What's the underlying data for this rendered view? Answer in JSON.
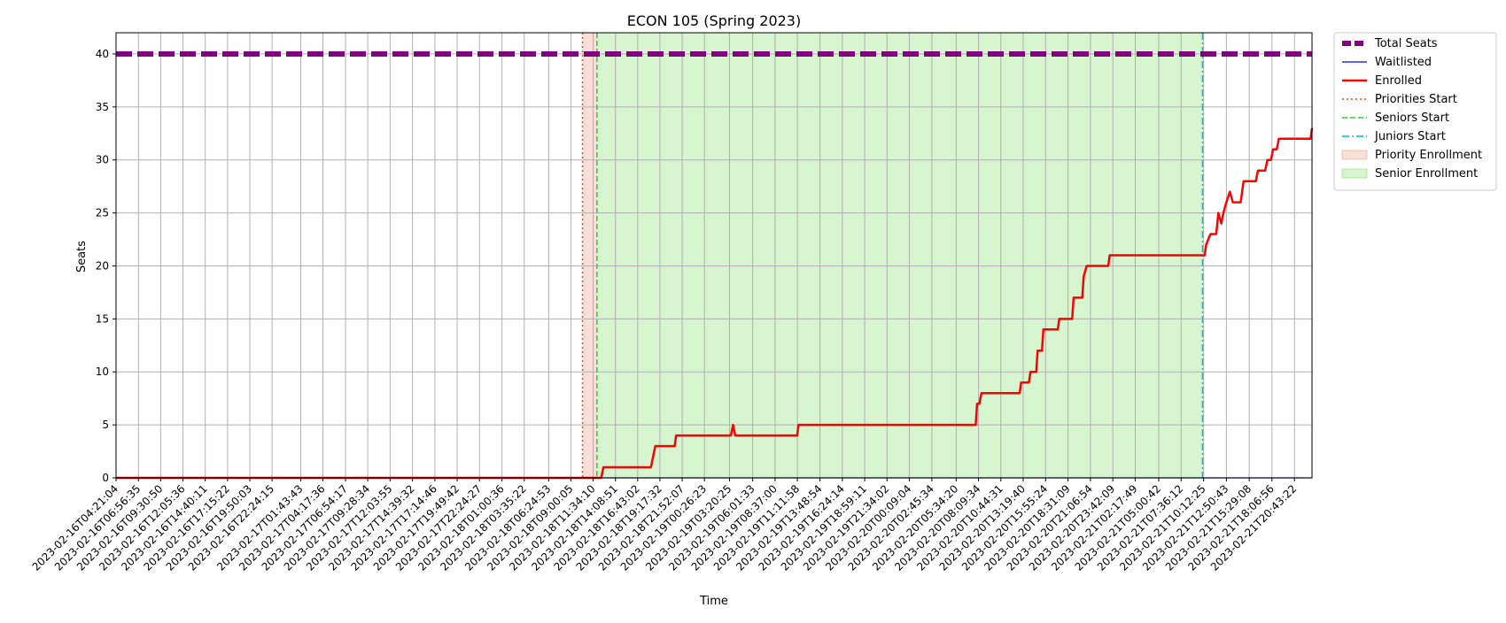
{
  "chart_data": {
    "type": "line",
    "title": "ECON 105 (Spring 2023)",
    "xlabel": "Time",
    "ylabel": "Seats",
    "ylim": [
      0,
      42
    ],
    "yticks": [
      0,
      5,
      10,
      15,
      20,
      25,
      30,
      35,
      40
    ],
    "xlim": [
      "2023-02-16T04:21:04",
      "2023-02-21T22:45:00"
    ],
    "grid": true,
    "legend_position": "outside-right-top",
    "xticks": [
      "2023-02-16T04:21:04",
      "2023-02-16T06:56:35",
      "2023-02-16T09:30:50",
      "2023-02-16T12:05:36",
      "2023-02-16T14:40:11",
      "2023-02-16T17:15:22",
      "2023-02-16T19:50:03",
      "2023-02-16T22:24:15",
      "2023-02-17T01:43:43",
      "2023-02-17T04:17:36",
      "2023-02-17T06:54:17",
      "2023-02-17T09:28:34",
      "2023-02-17T12:03:55",
      "2023-02-17T14:39:32",
      "2023-02-17T17:14:46",
      "2023-02-17T19:49:42",
      "2023-02-17T22:24:27",
      "2023-02-18T01:00:36",
      "2023-02-18T03:35:22",
      "2023-02-18T06:24:53",
      "2023-02-18T09:00:05",
      "2023-02-18T11:34:10",
      "2023-02-18T14:08:51",
      "2023-02-18T16:43:02",
      "2023-02-18T19:17:32",
      "2023-02-18T21:52:07",
      "2023-02-19T00:26:23",
      "2023-02-19T03:20:25",
      "2023-02-19T06:01:33",
      "2023-02-19T08:37:00",
      "2023-02-19T11:11:58",
      "2023-02-19T13:48:54",
      "2023-02-19T16:24:14",
      "2023-02-19T18:59:11",
      "2023-02-19T21:34:02",
      "2023-02-20T00:09:04",
      "2023-02-20T02:45:34",
      "2023-02-20T05:34:20",
      "2023-02-20T08:09:34",
      "2023-02-20T10:44:31",
      "2023-02-20T13:19:40",
      "2023-02-20T15:55:24",
      "2023-02-20T18:31:09",
      "2023-02-20T21:06:54",
      "2023-02-20T23:42:09",
      "2023-02-21T02:17:49",
      "2023-02-21T05:00:42",
      "2023-02-21T07:36:12",
      "2023-02-21T10:12:25",
      "2023-02-21T12:50:43",
      "2023-02-21T15:29:08",
      "2023-02-21T18:06:56",
      "2023-02-21T20:43:22"
    ],
    "series": [
      {
        "name": "Total Seats",
        "color": "#800080",
        "style": "dashed-thick",
        "points": [
          [
            "2023-02-16T04:21:04",
            40
          ],
          [
            "2023-02-21T22:45:00",
            40
          ]
        ]
      },
      {
        "name": "Waitlisted",
        "color": "#0000ff",
        "style": "solid-thin",
        "points": [
          [
            "2023-02-16T04:21:04",
            0
          ],
          [
            "2023-02-21T22:45:00",
            0
          ]
        ]
      },
      {
        "name": "Enrolled",
        "color": "#ff0000",
        "style": "solid",
        "points": [
          [
            "2023-02-16T04:21:04",
            0
          ],
          [
            "2023-02-18T12:30:00",
            0
          ],
          [
            "2023-02-18T12:45:00",
            1
          ],
          [
            "2023-02-18T18:15:00",
            1
          ],
          [
            "2023-02-18T18:30:00",
            2
          ],
          [
            "2023-02-18T18:45:00",
            3
          ],
          [
            "2023-02-18T21:00:00",
            3
          ],
          [
            "2023-02-18T21:10:00",
            4
          ],
          [
            "2023-02-19T03:30:00",
            4
          ],
          [
            "2023-02-19T03:45:00",
            5
          ],
          [
            "2023-02-19T04:00:00",
            4
          ],
          [
            "2023-02-19T11:10:00",
            4
          ],
          [
            "2023-02-19T11:20:00",
            5
          ],
          [
            "2023-02-20T07:50:00",
            5
          ],
          [
            "2023-02-20T08:00:00",
            7
          ],
          [
            "2023-02-20T08:15:00",
            7
          ],
          [
            "2023-02-20T08:30:00",
            8
          ],
          [
            "2023-02-20T12:55:00",
            8
          ],
          [
            "2023-02-20T13:05:00",
            9
          ],
          [
            "2023-02-20T14:00:00",
            9
          ],
          [
            "2023-02-20T14:10:00",
            10
          ],
          [
            "2023-02-20T14:50:00",
            10
          ],
          [
            "2023-02-20T15:00:00",
            12
          ],
          [
            "2023-02-20T15:30:00",
            12
          ],
          [
            "2023-02-20T15:40:00",
            14
          ],
          [
            "2023-02-20T17:20:00",
            14
          ],
          [
            "2023-02-20T17:30:00",
            15
          ],
          [
            "2023-02-20T19:00:00",
            15
          ],
          [
            "2023-02-20T19:10:00",
            17
          ],
          [
            "2023-02-20T20:10:00",
            17
          ],
          [
            "2023-02-20T20:20:00",
            19
          ],
          [
            "2023-02-20T20:40:00",
            20
          ],
          [
            "2023-02-20T23:10:00",
            20
          ],
          [
            "2023-02-20T23:20:00",
            21
          ],
          [
            "2023-02-21T10:20:00",
            21
          ],
          [
            "2023-02-21T10:30:00",
            22
          ],
          [
            "2023-02-21T11:00:00",
            23
          ],
          [
            "2023-02-21T11:40:00",
            23
          ],
          [
            "2023-02-21T11:55:00",
            25
          ],
          [
            "2023-02-21T12:15:00",
            24
          ],
          [
            "2023-02-21T12:30:00",
            25
          ],
          [
            "2023-02-21T12:50:00",
            26
          ],
          [
            "2023-02-21T13:15:00",
            27
          ],
          [
            "2023-02-21T13:35:00",
            26
          ],
          [
            "2023-02-21T14:30:00",
            26
          ],
          [
            "2023-02-21T14:50:00",
            28
          ],
          [
            "2023-02-21T16:15:00",
            28
          ],
          [
            "2023-02-21T16:30:00",
            29
          ],
          [
            "2023-02-21T17:20:00",
            29
          ],
          [
            "2023-02-21T17:35:00",
            30
          ],
          [
            "2023-02-21T18:00:00",
            30
          ],
          [
            "2023-02-21T18:15:00",
            31
          ],
          [
            "2023-02-21T18:40:00",
            31
          ],
          [
            "2023-02-21T18:55:00",
            32
          ],
          [
            "2023-02-21T22:35:00",
            32
          ],
          [
            "2023-02-21T22:45:00",
            33
          ]
        ]
      }
    ],
    "vlines": [
      {
        "name": "Priorities Start",
        "x": "2023-02-18T10:20:00",
        "color": "#ff4500",
        "style": "dotted"
      },
      {
        "name": "Seniors Start",
        "x": "2023-02-18T12:00:00",
        "color": "#32cd32",
        "style": "dashed"
      },
      {
        "name": "Juniors Start",
        "x": "2023-02-21T10:05:00",
        "color": "#00bcd4",
        "style": "dashdot"
      }
    ],
    "spans": [
      {
        "name": "Priority Enrollment",
        "x0": "2023-02-18T10:20:00",
        "x1": "2023-02-18T12:00:00",
        "color": "#e9967a",
        "opacity": 0.3
      },
      {
        "name": "Senior Enrollment",
        "x0": "2023-02-18T12:00:00",
        "x1": "2023-02-21T10:05:00",
        "color": "#7cdd5f",
        "opacity": 0.3
      }
    ],
    "legend": [
      {
        "label": "Total Seats",
        "kind": "line",
        "color": "#800080",
        "style": "dashed-thick"
      },
      {
        "label": "Waitlisted",
        "kind": "line",
        "color": "#0000ff",
        "style": "solid-thin"
      },
      {
        "label": "Enrolled",
        "kind": "line",
        "color": "#ff0000",
        "style": "solid"
      },
      {
        "label": "Priorities Start",
        "kind": "line",
        "color": "#ff4500",
        "style": "dotted"
      },
      {
        "label": "Seniors Start",
        "kind": "line",
        "color": "#32cd32",
        "style": "dashed"
      },
      {
        "label": "Juniors Start",
        "kind": "line",
        "color": "#00bcd4",
        "style": "dashdot"
      },
      {
        "label": "Priority Enrollment",
        "kind": "patch",
        "color": "#e9967a",
        "opacity": 0.3
      },
      {
        "label": "Senior Enrollment",
        "kind": "patch",
        "color": "#7cdd5f",
        "opacity": 0.3
      }
    ]
  }
}
